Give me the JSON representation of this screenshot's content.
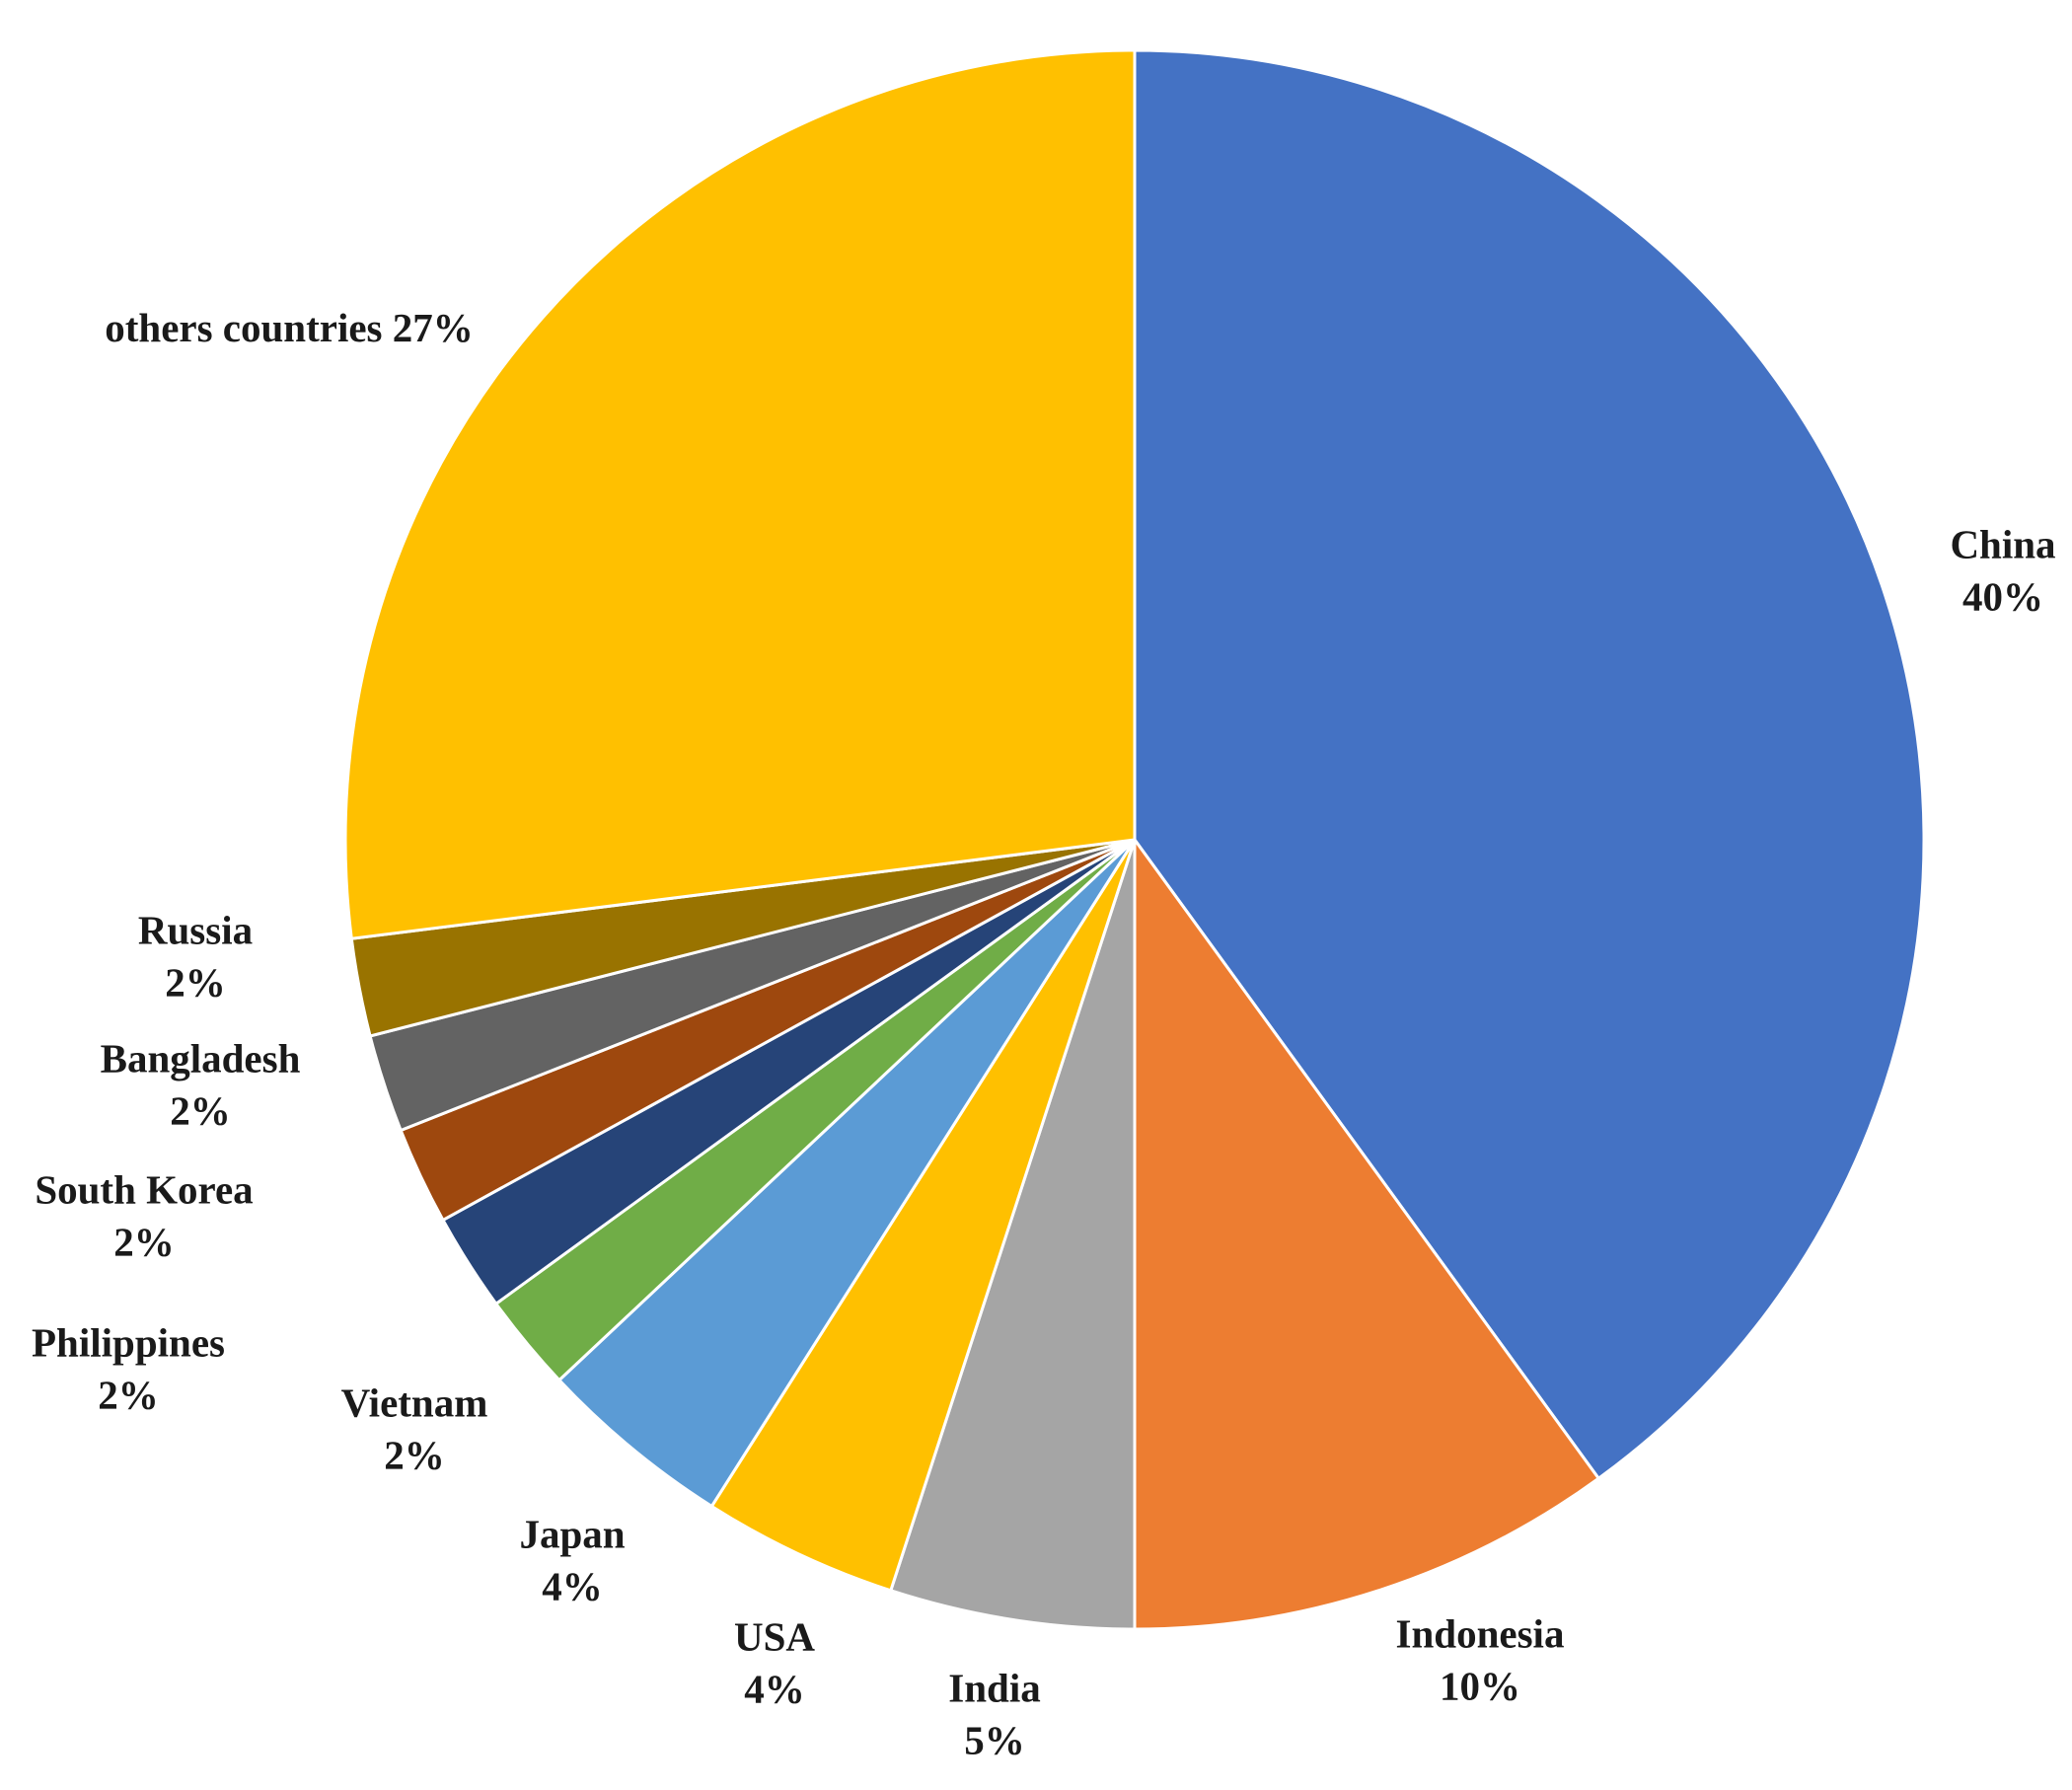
{
  "chart_data": {
    "type": "pie",
    "title": "",
    "start_angle_deg": 0,
    "direction": "clockwise",
    "legend": "none",
    "slices": [
      {
        "label": "China",
        "percent_label": "40%",
        "value": 40,
        "color": "#4472C4",
        "label_lines": [
          "China",
          "40%"
        ]
      },
      {
        "label": "Indonesia",
        "percent_label": "10%",
        "value": 10,
        "color": "#ED7D31",
        "label_lines": [
          "Indonesia",
          "10%"
        ]
      },
      {
        "label": "India",
        "percent_label": "5%",
        "value": 5,
        "color": "#A5A5A5",
        "label_lines": [
          "India",
          "5%"
        ]
      },
      {
        "label": "USA",
        "percent_label": "4%",
        "value": 4,
        "color": "#FFC000",
        "label_lines": [
          "USA",
          "4%"
        ]
      },
      {
        "label": "Japan",
        "percent_label": "4%",
        "value": 4,
        "color": "#5B9BD5",
        "label_lines": [
          "Japan",
          "4%"
        ]
      },
      {
        "label": "Vietnam",
        "percent_label": "2%",
        "value": 2,
        "color": "#70AD47",
        "label_lines": [
          "Vietnam",
          "2%"
        ]
      },
      {
        "label": "Philippines",
        "percent_label": "2%",
        "value": 2,
        "color": "#264478",
        "label_lines": [
          "Philippines",
          "2%"
        ]
      },
      {
        "label": "South Korea",
        "percent_label": "2%",
        "value": 2,
        "color": "#9E480E",
        "label_lines": [
          "South Korea",
          "2%"
        ]
      },
      {
        "label": "Bangladesh",
        "percent_label": "2%",
        "value": 2,
        "color": "#636363",
        "label_lines": [
          "Bangladesh",
          "2%"
        ]
      },
      {
        "label": "Russia",
        "percent_label": "2%",
        "value": 2,
        "color": "#997300",
        "label_lines": [
          "Russia",
          "2%"
        ]
      },
      {
        "label": "others countries",
        "percent_label": "27%",
        "value": 27,
        "color": "#FFC000",
        "label_lines": [
          "others countries 27%"
        ]
      }
    ]
  }
}
